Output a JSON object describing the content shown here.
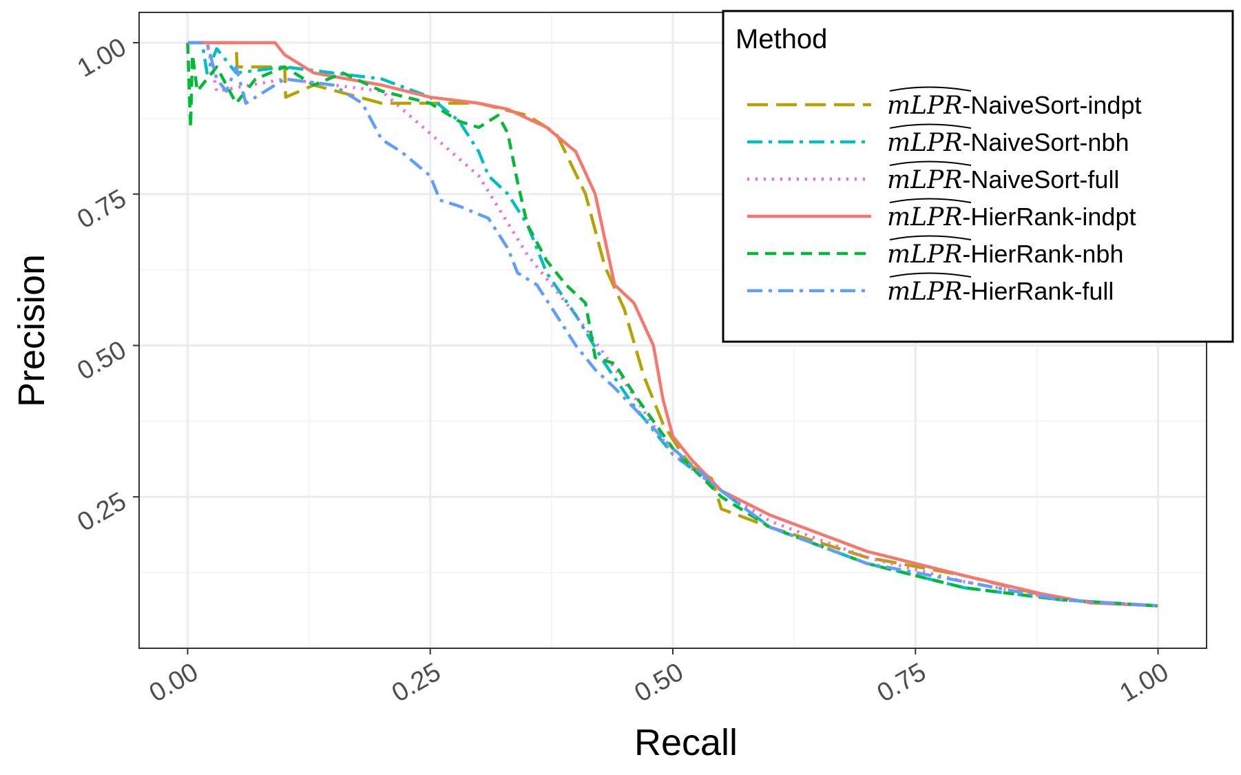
{
  "chart_data": {
    "type": "line",
    "title": "",
    "xlabel": "Recall",
    "ylabel": "Precision",
    "xlim": [
      -0.05,
      1.05
    ],
    "ylim": [
      0.0,
      1.05
    ],
    "x_ticks": [
      "0.00",
      "0.25",
      "0.50",
      "0.75",
      "1.00"
    ],
    "y_ticks": [
      "0.25",
      "0.50",
      "0.75",
      "1.00"
    ],
    "grid": true,
    "legend": {
      "title": "Method",
      "placement": "top-right"
    },
    "series": [
      {
        "name": "mLPR-NaiveSort-indpt",
        "label_hat": "mLPR",
        "label_rest": "-NaiveSort-indpt",
        "color": "#B5A300",
        "style": "longdash",
        "points": [
          [
            0.0,
            1.0
          ],
          [
            0.05,
            1.0
          ],
          [
            0.051,
            0.96
          ],
          [
            0.1,
            0.96
          ],
          [
            0.101,
            0.91
          ],
          [
            0.13,
            0.93
          ],
          [
            0.2,
            0.9
          ],
          [
            0.3,
            0.9
          ],
          [
            0.35,
            0.88
          ],
          [
            0.38,
            0.85
          ],
          [
            0.41,
            0.75
          ],
          [
            0.43,
            0.63
          ],
          [
            0.45,
            0.56
          ],
          [
            0.47,
            0.45
          ],
          [
            0.49,
            0.37
          ],
          [
            0.51,
            0.32
          ],
          [
            0.52,
            0.3
          ],
          [
            0.54,
            0.28
          ],
          [
            0.55,
            0.23
          ],
          [
            0.6,
            0.2
          ],
          [
            0.7,
            0.15
          ],
          [
            0.8,
            0.12
          ],
          [
            0.9,
            0.08
          ],
          [
            1.0,
            0.07
          ]
        ]
      },
      {
        "name": "mLPR-NaiveSort-nbh",
        "label_hat": "mLPR",
        "label_rest": "-NaiveSort-nbh",
        "color": "#00BFC4",
        "style": "dashdot",
        "points": [
          [
            0.0,
            1.0
          ],
          [
            0.015,
            1.0
          ],
          [
            0.02,
            0.95
          ],
          [
            0.03,
            0.99
          ],
          [
            0.05,
            0.95
          ],
          [
            0.1,
            0.96
          ],
          [
            0.2,
            0.94
          ],
          [
            0.25,
            0.91
          ],
          [
            0.28,
            0.87
          ],
          [
            0.3,
            0.82
          ],
          [
            0.31,
            0.78
          ],
          [
            0.33,
            0.75
          ],
          [
            0.35,
            0.7
          ],
          [
            0.37,
            0.62
          ],
          [
            0.4,
            0.55
          ],
          [
            0.43,
            0.47
          ],
          [
            0.46,
            0.4
          ],
          [
            0.5,
            0.32
          ],
          [
            0.55,
            0.26
          ],
          [
            0.6,
            0.2
          ],
          [
            0.7,
            0.14
          ],
          [
            0.8,
            0.1
          ],
          [
            0.9,
            0.08
          ],
          [
            1.0,
            0.07
          ]
        ]
      },
      {
        "name": "mLPR-NaiveSort-full",
        "label_hat": "mLPR",
        "label_rest": "-NaiveSort-full",
        "color": "#F564E3",
        "style": "dotted",
        "points": [
          [
            0.0,
            1.0
          ],
          [
            0.02,
            1.0
          ],
          [
            0.03,
            0.92
          ],
          [
            0.1,
            0.94
          ],
          [
            0.2,
            0.92
          ],
          [
            0.25,
            0.85
          ],
          [
            0.3,
            0.78
          ],
          [
            0.35,
            0.65
          ],
          [
            0.4,
            0.55
          ],
          [
            0.45,
            0.44
          ],
          [
            0.5,
            0.32
          ],
          [
            0.55,
            0.26
          ],
          [
            0.6,
            0.21
          ],
          [
            0.7,
            0.15
          ],
          [
            0.8,
            0.11
          ],
          [
            0.9,
            0.08
          ],
          [
            1.0,
            0.07
          ]
        ]
      },
      {
        "name": "mLPR-HierRank-indpt",
        "label_hat": "mLPR",
        "label_rest": "-HierRank-indpt",
        "color": "#F8766D",
        "style": "solid",
        "points": [
          [
            0.0,
            1.0
          ],
          [
            0.09,
            1.0
          ],
          [
            0.1,
            0.98
          ],
          [
            0.13,
            0.95
          ],
          [
            0.2,
            0.93
          ],
          [
            0.25,
            0.91
          ],
          [
            0.3,
            0.9
          ],
          [
            0.33,
            0.89
          ],
          [
            0.37,
            0.86
          ],
          [
            0.4,
            0.82
          ],
          [
            0.42,
            0.75
          ],
          [
            0.44,
            0.6
          ],
          [
            0.46,
            0.57
          ],
          [
            0.48,
            0.5
          ],
          [
            0.49,
            0.41
          ],
          [
            0.5,
            0.35
          ],
          [
            0.52,
            0.31
          ],
          [
            0.55,
            0.26
          ],
          [
            0.6,
            0.22
          ],
          [
            0.7,
            0.16
          ],
          [
            0.8,
            0.12
          ],
          [
            0.88,
            0.09
          ],
          [
            0.93,
            0.075
          ],
          [
            1.0,
            0.07
          ]
        ]
      },
      {
        "name": "mLPR-HierRank-nbh",
        "label_hat": "mLPR",
        "label_rest": "-HierRank-nbh",
        "color": "#00BA38",
        "style": "shortdash",
        "points": [
          [
            0.0,
            1.0
          ],
          [
            0.003,
            0.86
          ],
          [
            0.005,
            0.98
          ],
          [
            0.01,
            0.92
          ],
          [
            0.03,
            0.96
          ],
          [
            0.05,
            0.9
          ],
          [
            0.07,
            0.94
          ],
          [
            0.1,
            0.96
          ],
          [
            0.13,
            0.93
          ],
          [
            0.16,
            0.95
          ],
          [
            0.2,
            0.92
          ],
          [
            0.25,
            0.9
          ],
          [
            0.28,
            0.87
          ],
          [
            0.3,
            0.86
          ],
          [
            0.32,
            0.88
          ],
          [
            0.33,
            0.85
          ],
          [
            0.34,
            0.77
          ],
          [
            0.35,
            0.7
          ],
          [
            0.37,
            0.64
          ],
          [
            0.39,
            0.6
          ],
          [
            0.41,
            0.57
          ],
          [
            0.42,
            0.48
          ],
          [
            0.44,
            0.47
          ],
          [
            0.46,
            0.42
          ],
          [
            0.5,
            0.33
          ],
          [
            0.55,
            0.25
          ],
          [
            0.6,
            0.2
          ],
          [
            0.7,
            0.14
          ],
          [
            0.8,
            0.1
          ],
          [
            0.9,
            0.08
          ],
          [
            1.0,
            0.07
          ]
        ]
      },
      {
        "name": "mLPR-HierRank-full",
        "label_hat": "mLPR",
        "label_rest": "-HierRank-full",
        "color": "#619CFF",
        "style": "dashdot",
        "points": [
          [
            0.0,
            1.0
          ],
          [
            0.02,
            1.0
          ],
          [
            0.03,
            0.94
          ],
          [
            0.04,
            0.92
          ],
          [
            0.05,
            0.96
          ],
          [
            0.06,
            0.9
          ],
          [
            0.1,
            0.94
          ],
          [
            0.15,
            0.93
          ],
          [
            0.18,
            0.9
          ],
          [
            0.2,
            0.84
          ],
          [
            0.22,
            0.82
          ],
          [
            0.25,
            0.78
          ],
          [
            0.26,
            0.74
          ],
          [
            0.28,
            0.73
          ],
          [
            0.31,
            0.71
          ],
          [
            0.33,
            0.66
          ],
          [
            0.34,
            0.62
          ],
          [
            0.36,
            0.6
          ],
          [
            0.38,
            0.55
          ],
          [
            0.4,
            0.5
          ],
          [
            0.42,
            0.46
          ],
          [
            0.44,
            0.43
          ],
          [
            0.47,
            0.38
          ],
          [
            0.5,
            0.33
          ],
          [
            0.55,
            0.26
          ],
          [
            0.6,
            0.2
          ],
          [
            0.7,
            0.14
          ],
          [
            0.8,
            0.11
          ],
          [
            0.9,
            0.08
          ],
          [
            1.0,
            0.07
          ]
        ]
      }
    ]
  }
}
